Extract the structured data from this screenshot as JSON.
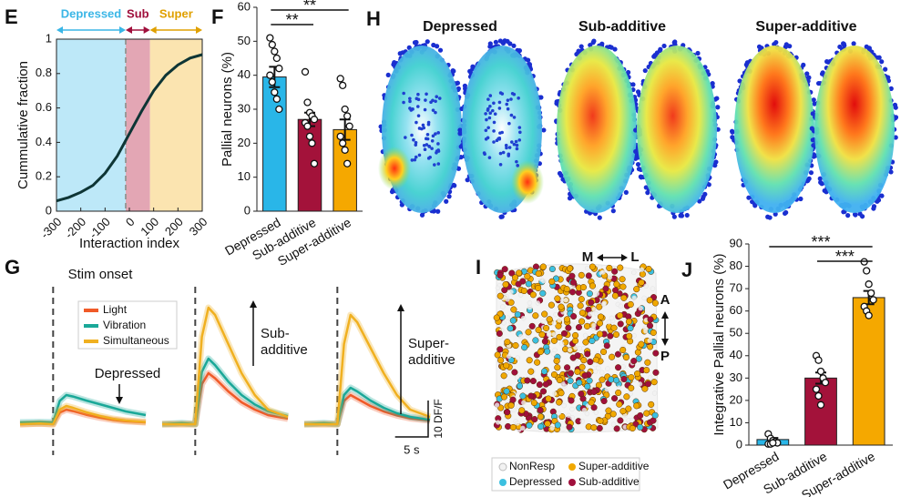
{
  "chart_data": [
    {
      "panel": "E",
      "type": "line",
      "x": [
        -300,
        -250,
        -200,
        -150,
        -100,
        -50,
        0,
        50,
        100,
        150,
        200,
        250,
        300
      ],
      "values": [
        0.06,
        0.08,
        0.11,
        0.15,
        0.22,
        0.32,
        0.45,
        0.58,
        0.7,
        0.79,
        0.85,
        0.89,
        0.91
      ],
      "color": "#0e3535",
      "xlim": [
        -300,
        300
      ],
      "xticks": [
        -300,
        -200,
        -100,
        0,
        100,
        200,
        300
      ],
      "ylim": [
        0,
        1
      ],
      "yticks": [
        0,
        0.2,
        0.4,
        0.6,
        0.8,
        1
      ],
      "xlabel": "Interaction index",
      "ylabel": "Cummulative fraction",
      "regions": [
        {
          "label": "Depressed",
          "from": -300,
          "to": -15,
          "color": "#bde8f8",
          "label_color": "#3ab6e6"
        },
        {
          "label": "Sub",
          "from": -15,
          "to": 85,
          "color": "#e3a6b4",
          "label_color": "#a0103c"
        },
        {
          "label": "Super",
          "from": 85,
          "to": 300,
          "color": "#fbe4b0",
          "label_color": "#e0a000"
        }
      ]
    },
    {
      "panel": "F",
      "type": "bar",
      "categories": [
        "Depressed",
        "Sub-additive",
        "Super-additive"
      ],
      "values": [
        39.5,
        27,
        24
      ],
      "errors": [
        3,
        2,
        3
      ],
      "colors": [
        "#29b6e8",
        "#a3123a",
        "#f5a800"
      ],
      "points": [
        [
          51,
          49,
          47,
          45,
          42,
          40,
          38,
          35,
          33,
          30
        ],
        [
          41,
          32,
          29,
          28,
          27,
          26,
          25,
          22,
          20,
          14
        ],
        [
          39,
          37,
          30,
          28,
          25,
          22,
          20,
          18,
          14
        ]
      ],
      "ylim": [
        0,
        60
      ],
      "yticks": [
        0,
        10,
        20,
        30,
        40,
        50,
        60
      ],
      "ylabel": "Pallial neurons (%)",
      "comparisons": [
        {
          "label": "**",
          "between": [
            "Depressed",
            "Sub-additive"
          ]
        },
        {
          "label": "**",
          "between": [
            "Depressed",
            "Super-additive"
          ]
        }
      ]
    },
    {
      "panel": "H",
      "type": "heatmap",
      "titles": [
        "Depressed",
        "Sub-additive",
        "Super-additive"
      ]
    },
    {
      "panel": "G",
      "type": "traces",
      "x": [
        -5,
        -2,
        0,
        1,
        2,
        3,
        5,
        7,
        9,
        11,
        14
      ],
      "series": [
        {
          "name": "Light",
          "color": "#f05a28",
          "values": [
            [
              0,
              0.2,
              0,
              3.2,
              4,
              3.6,
              2.6,
              1.8,
              1.2,
              0.8,
              0.5
            ],
            [
              0,
              0,
              0,
              11,
              14,
              12.6,
              9,
              6,
              4,
              2.5,
              1.5
            ],
            [
              0,
              0,
              0,
              6.4,
              8,
              7,
              5,
              3.5,
              2.4,
              1.6,
              1
            ]
          ]
        },
        {
          "name": "Vibration",
          "color": "#1aa898",
          "values": [
            [
              0.5,
              0.6,
              0.5,
              6.4,
              8,
              7.6,
              6.5,
              5.5,
              4.5,
              3.5,
              2.5
            ],
            [
              0,
              0.3,
              0,
              14.4,
              18,
              16.2,
              11.7,
              8,
              5.4,
              3.6,
              2.2
            ],
            [
              0,
              0.3,
              0,
              8,
              10,
              9,
              6.5,
              4.5,
              3,
              2,
              1.2
            ]
          ]
        },
        {
          "name": "Simultaneous",
          "color": "#f0b020",
          "values": [
            [
              0,
              0.2,
              0,
              4,
              5,
              4.5,
              3.3,
              2.3,
              1.5,
              1,
              0.6
            ],
            [
              0,
              0,
              0,
              24,
              32,
              30,
              22,
              14,
              8,
              4,
              2
            ],
            [
              0,
              0,
              0,
              22,
              30,
              28,
              21,
              14,
              8,
              4,
              2
            ]
          ]
        }
      ],
      "stim_label": "Stim onset",
      "annotations": [
        [
          "Depressed"
        ],
        [
          "Sub-",
          "additive"
        ],
        [
          "Super-",
          "additive"
        ]
      ],
      "scale_bar": {
        "y": 10,
        "y_label": "10 DF/F",
        "x": 5,
        "x_label": "5 s"
      }
    },
    {
      "panel": "I",
      "type": "scatter-map",
      "directions": [
        "M",
        "L",
        "A",
        "P"
      ],
      "legend": [
        {
          "name": "NonResp",
          "color": "#f2f2f2"
        },
        {
          "name": "Super-additive",
          "color": "#f0a800"
        },
        {
          "name": "Depressed",
          "color": "#3cc0e0"
        },
        {
          "name": "Sub-additive",
          "color": "#a0103c"
        }
      ]
    },
    {
      "panel": "J",
      "type": "bar",
      "categories": [
        "Depressed",
        "Sub-additive",
        "Super-additive"
      ],
      "values": [
        2.5,
        30,
        66
      ],
      "errors": [
        0.7,
        2.5,
        3
      ],
      "colors": [
        "#29b6e8",
        "#a3123a",
        "#f5a800"
      ],
      "points": [
        [
          5,
          3,
          2,
          1.5,
          1,
          0.5,
          0.5,
          1
        ],
        [
          40,
          38,
          33,
          30,
          28,
          25,
          22,
          18
        ],
        [
          82,
          78,
          72,
          68,
          65,
          62,
          60,
          58
        ]
      ],
      "ylim": [
        0,
        90
      ],
      "yticks": [
        0,
        10,
        20,
        30,
        40,
        50,
        60,
        70,
        80,
        90
      ],
      "ylabel": "Integrative Pallial neurons (%)",
      "comparisons": [
        {
          "label": "***",
          "between": [
            "Sub-additive",
            "Super-additive"
          ]
        },
        {
          "label": "***",
          "between": [
            "Depressed",
            "Super-additive"
          ]
        }
      ]
    }
  ]
}
